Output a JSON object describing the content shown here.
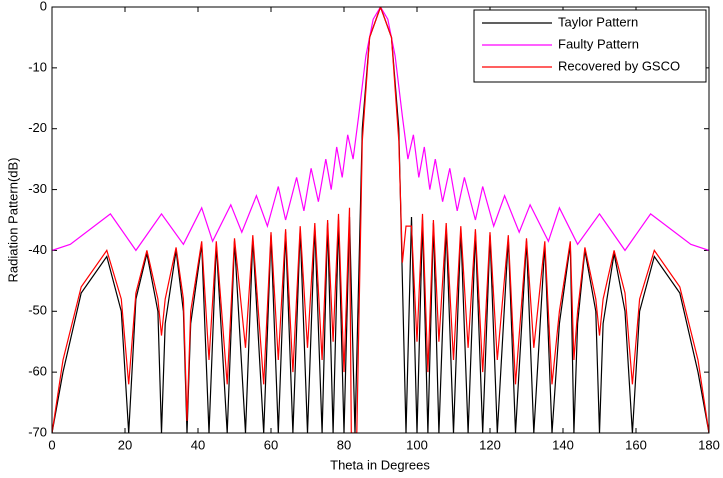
{
  "chart_data": {
    "type": "line",
    "xlabel": "Theta in Degrees",
    "ylabel": "Radiation Pattern(dB)",
    "xlim": [
      0,
      180
    ],
    "xticks": [
      0,
      20,
      40,
      60,
      80,
      100,
      120,
      140,
      160,
      180
    ],
    "ylim": [
      -70,
      0
    ],
    "yticks": [
      -70,
      -60,
      -50,
      -40,
      -30,
      -20,
      -10,
      0
    ],
    "legend": "upper right",
    "grid": false,
    "series": [
      {
        "name": "Taylor Pattern",
        "color": "#000000",
        "x": [
          0,
          3,
          8,
          15,
          19,
          21,
          23,
          26,
          29,
          30,
          31,
          34,
          36,
          37,
          38,
          41,
          43,
          45,
          48,
          50,
          53,
          55,
          58,
          60,
          62,
          64,
          66,
          68,
          70,
          72,
          74,
          75.5,
          77,
          78.5,
          80,
          81.5,
          83,
          85,
          87,
          90,
          93,
          95,
          97,
          98.5,
          100,
          101.5,
          103,
          104.5,
          106,
          108,
          110,
          112,
          114,
          116,
          118,
          120,
          122,
          125,
          127,
          130,
          132,
          135,
          137,
          139,
          142,
          143,
          144,
          146,
          149,
          150,
          151,
          154,
          157,
          159,
          161,
          165,
          172,
          177,
          180
        ],
        "values": [
          -70,
          -60,
          -47,
          -41,
          -50,
          -70,
          -48,
          -40.5,
          -50,
          -70,
          -52,
          -40,
          -50,
          -70,
          -52,
          -39,
          -70,
          -39,
          -70,
          -38.5,
          -70,
          -38,
          -70,
          -37.5,
          -70,
          -37,
          -70,
          -36.5,
          -70,
          -36,
          -70,
          -35.5,
          -70,
          -35,
          -70,
          -34.5,
          -70,
          -20,
          -5,
          0,
          -5,
          -20,
          -70,
          -34.5,
          -70,
          -35,
          -70,
          -35.5,
          -70,
          -36,
          -70,
          -36.5,
          -70,
          -37,
          -70,
          -37.5,
          -70,
          -38,
          -70,
          -38.5,
          -70,
          -39,
          -70,
          -52,
          -39,
          -70,
          -52,
          -40,
          -50,
          -70,
          -52,
          -40.5,
          -50,
          -70,
          -50,
          -41,
          -47,
          -60,
          -70
        ]
      },
      {
        "name": "Faulty Pattern",
        "color": "#ff00ff",
        "x": [
          0,
          5,
          16,
          23,
          30,
          36,
          41,
          44,
          49,
          52,
          56,
          59,
          62,
          64,
          67,
          69,
          71,
          73,
          75,
          76.5,
          78,
          79.5,
          81,
          82.5,
          84,
          86,
          88,
          90,
          92,
          94,
          96,
          97.5,
          99,
          100.5,
          102,
          103.5,
          105,
          107,
          109,
          111,
          113,
          116,
          118,
          121,
          124,
          128,
          131,
          136,
          139,
          144,
          150,
          157,
          164,
          175,
          180
        ],
        "values": [
          -40,
          -39,
          -34,
          -40,
          -34,
          -39,
          -33,
          -38.5,
          -32.5,
          -37,
          -31,
          -36,
          -29.5,
          -35,
          -28,
          -33.5,
          -26.5,
          -32,
          -25,
          -30,
          -23,
          -28,
          -21,
          -25,
          -18,
          -8,
          -2,
          0,
          -2,
          -8,
          -18,
          -25,
          -21,
          -28,
          -23,
          -30,
          -25,
          -32,
          -26.5,
          -33.5,
          -28,
          -35,
          -29.5,
          -36,
          -31,
          -37,
          -32.5,
          -38.5,
          -33,
          -39,
          -34,
          -40,
          -34,
          -39,
          -40
        ]
      },
      {
        "name": "Recovered by GSCO",
        "color": "#ff0000",
        "x": [
          0,
          3,
          8,
          15,
          19,
          21,
          23,
          26,
          29,
          30,
          31,
          34,
          36,
          37,
          38,
          41,
          43,
          45,
          48,
          50,
          53,
          55,
          58,
          60,
          62,
          64,
          66,
          68,
          70,
          72,
          74,
          75.5,
          77,
          78.5,
          80,
          81.5,
          82,
          83.5,
          85,
          87,
          90,
          93,
          95,
          96,
          97,
          98.5,
          100,
          101.5,
          103,
          104.5,
          106,
          108,
          110,
          112,
          114,
          116,
          118,
          120,
          122,
          125,
          127,
          130,
          132,
          135,
          137,
          139,
          142,
          143,
          144,
          146,
          149,
          150,
          151,
          154,
          157,
          159,
          161,
          165,
          172,
          177,
          180
        ],
        "values": [
          -70,
          -58,
          -46,
          -40,
          -48,
          -62,
          -47,
          -40,
          -48,
          -54,
          -48,
          -39.5,
          -48,
          -68,
          -50,
          -38.5,
          -58,
          -38.5,
          -62,
          -38,
          -56,
          -37.5,
          -62,
          -37,
          -58,
          -36.5,
          -60,
          -36,
          -56,
          -35.5,
          -58,
          -35,
          -55,
          -34,
          -60,
          -33,
          -70,
          -70,
          -22,
          -5,
          0,
          -5,
          -22,
          -42,
          -36,
          -36,
          -55,
          -34,
          -60,
          -35,
          -55,
          -35.5,
          -58,
          -36,
          -56,
          -36.5,
          -60,
          -37,
          -58,
          -37.5,
          -62,
          -38,
          -56,
          -38.5,
          -62,
          -50,
          -38.5,
          -58,
          -50,
          -39.5,
          -48,
          -54,
          -48,
          -40,
          -47,
          -62,
          -48,
          -40,
          -46,
          -58,
          -70
        ]
      }
    ]
  }
}
